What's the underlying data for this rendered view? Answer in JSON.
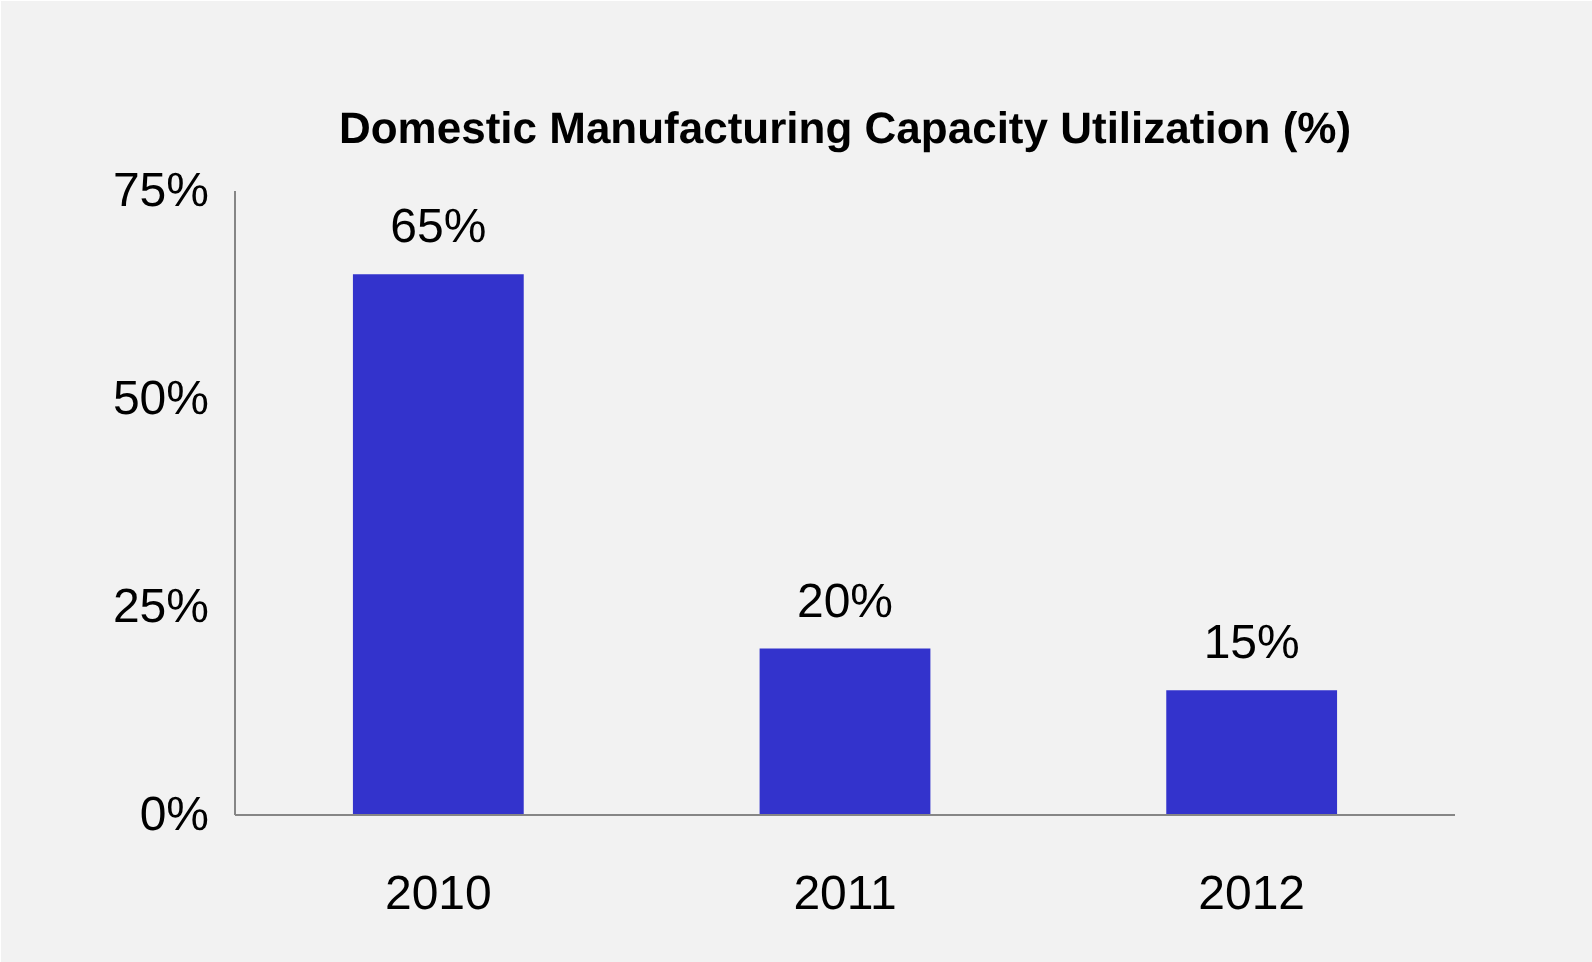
{
  "chart_data": {
    "type": "bar",
    "title": "Domestic Manufacturing Capacity Utilization (%)",
    "categories": [
      "2010",
      "2011",
      "2012"
    ],
    "values": [
      65,
      20,
      15
    ],
    "value_labels": [
      "65%",
      "20%",
      "15%"
    ],
    "color": "#3333cc",
    "ylim": [
      0,
      75
    ],
    "yticks": [
      {
        "value": 0,
        "label": "0%"
      },
      {
        "value": 25,
        "label": "25%"
      },
      {
        "value": 50,
        "label": "50%"
      },
      {
        "value": 75,
        "label": "75%"
      }
    ],
    "grid": false
  }
}
